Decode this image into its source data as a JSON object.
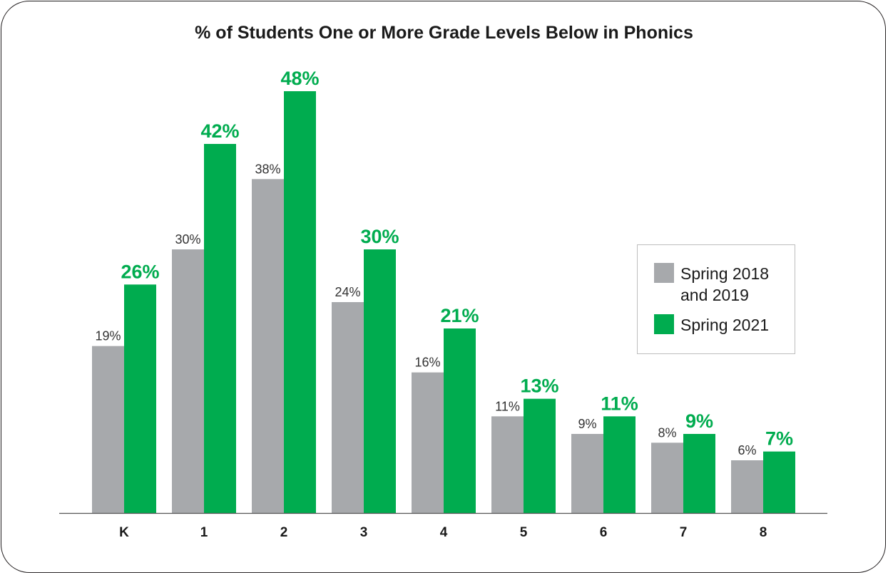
{
  "chart_data": {
    "type": "bar",
    "title": "% of Students One or More Grade Levels Below in Phonics",
    "xlabel": "",
    "ylabel": "",
    "categories": [
      "K",
      "1",
      "2",
      "3",
      "4",
      "5",
      "6",
      "7",
      "8"
    ],
    "series": [
      {
        "name": "Spring 2018 and 2019",
        "values": [
          19,
          30,
          38,
          24,
          16,
          11,
          9,
          8,
          6
        ],
        "labels": [
          "19%",
          "30%",
          "38%",
          "24%",
          "16%",
          "11%",
          "9%",
          "8%",
          "6%"
        ],
        "color": "#a7a9ac"
      },
      {
        "name": "Spring 2021",
        "values": [
          26,
          42,
          48,
          30,
          21,
          13,
          11,
          9,
          7
        ],
        "labels": [
          "26%",
          "42%",
          "48%",
          "30%",
          "21%",
          "13%",
          "11%",
          "9%",
          "7%"
        ],
        "color": "#00ac4f"
      }
    ],
    "ylim": [
      0,
      48
    ],
    "grid": false,
    "legend": "right"
  }
}
